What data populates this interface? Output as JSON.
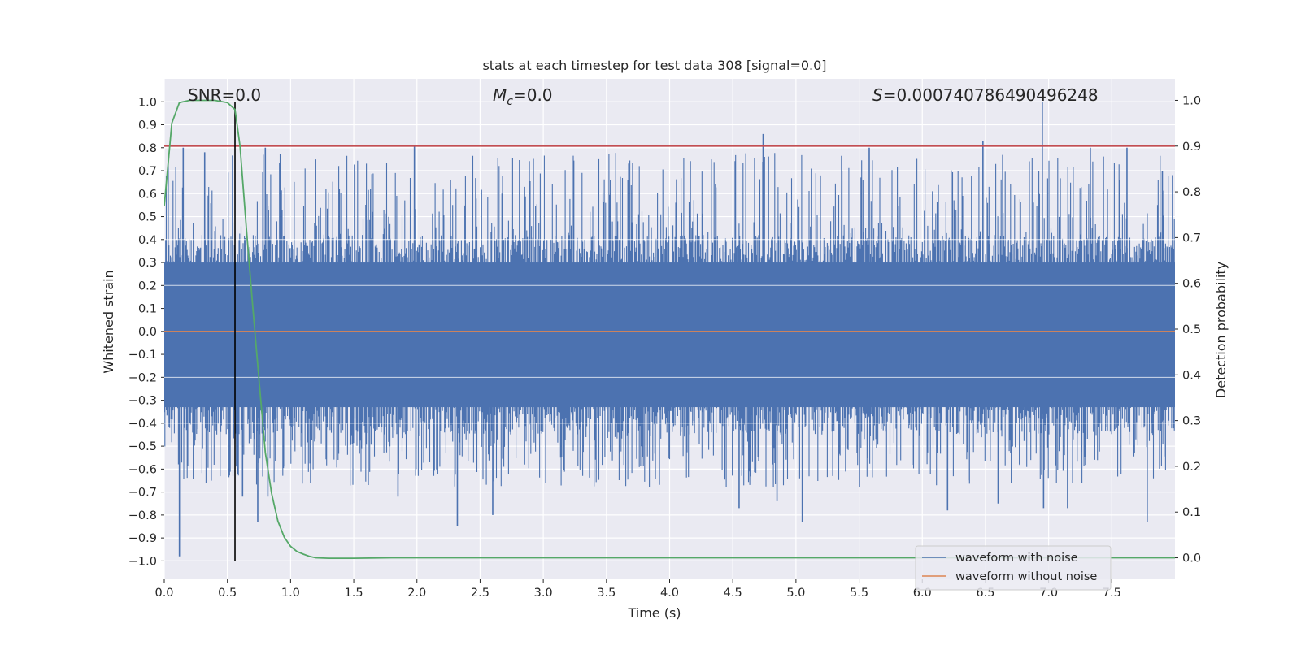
{
  "chart_data": {
    "type": "line",
    "title": "stats at each timestep for test data 308 [signal=0.0]",
    "xlabel": "Time (s)",
    "ylabel": "Whitened strain",
    "y2label": "Detection probability",
    "xlim": [
      0.0,
      8.0
    ],
    "ylim": [
      -1.08,
      1.1
    ],
    "y2lim": [
      -0.047,
      1.047
    ],
    "xticks": [
      0.0,
      0.5,
      1.0,
      1.5,
      2.0,
      2.5,
      3.0,
      3.5,
      4.0,
      4.5,
      5.0,
      5.5,
      6.0,
      6.5,
      7.0,
      7.5
    ],
    "xtick_labels": [
      "0.0",
      "0.5",
      "1.0",
      "1.5",
      "2.0",
      "2.5",
      "3.0",
      "3.5",
      "4.0",
      "4.5",
      "5.0",
      "5.5",
      "6.0",
      "6.5",
      "7.0",
      "7.5"
    ],
    "yticks": [
      1.0,
      0.9,
      0.8,
      0.7,
      0.6,
      0.5,
      0.4,
      0.3,
      0.2,
      0.1,
      0.0,
      -0.1,
      -0.2,
      -0.3,
      -0.4,
      -0.5,
      -0.6,
      -0.7,
      -0.8,
      -0.9,
      -1.0
    ],
    "ytick_labels": [
      "1.0",
      "0.9",
      "0.8",
      "0.7",
      "0.6",
      "0.5",
      "0.4",
      "0.3",
      "0.2",
      "0.1",
      "0.0",
      "−0.1",
      "−0.2",
      "−0.3",
      "−0.4",
      "−0.5",
      "−0.6",
      "−0.7",
      "−0.8",
      "−0.9",
      "−1.0"
    ],
    "y2ticks": [
      1.0,
      0.9,
      0.8,
      0.7,
      0.6,
      0.5,
      0.4,
      0.3,
      0.2,
      0.1,
      0.0
    ],
    "y2tick_labels": [
      "1.0",
      "0.9",
      "0.8",
      "0.7",
      "0.6",
      "0.5",
      "0.4",
      "0.3",
      "0.2",
      "0.1",
      "0.0"
    ],
    "annotations": {
      "snr": "SNR=0.0",
      "mc_symbol": "M",
      "mc_subscript": "c",
      "mc_value": "=0.0",
      "s_symbol": "S",
      "s_value": "=0.000740786490496248"
    },
    "threshold_line": {
      "y2": 0.9,
      "color": "#c44e52"
    },
    "marker_line": {
      "x": 0.56,
      "y_from": -1.0,
      "y_to": 1.0,
      "color": "#000000"
    },
    "noise_envelope": {
      "x": [
        0.0,
        0.1,
        0.2,
        0.3,
        0.4,
        0.5,
        0.6,
        0.7,
        0.8,
        0.9,
        1.0,
        1.5,
        2.0,
        2.5,
        3.0,
        3.5,
        4.0,
        4.5,
        5.0,
        5.5,
        6.0,
        6.5,
        7.0,
        7.5,
        8.0
      ],
      "upper_typical": 0.42,
      "lower_typical": -0.45
    },
    "noise_spikes": [
      {
        "x": 0.12,
        "y": -0.98
      },
      {
        "x": 0.15,
        "y": 0.8
      },
      {
        "x": 0.32,
        "y": 0.78
      },
      {
        "x": 0.62,
        "y": -0.72
      },
      {
        "x": 0.74,
        "y": -0.83
      },
      {
        "x": 0.8,
        "y": 0.8
      },
      {
        "x": 0.82,
        "y": -0.72
      },
      {
        "x": 1.85,
        "y": -0.72
      },
      {
        "x": 1.98,
        "y": 0.81
      },
      {
        "x": 2.32,
        "y": -0.85
      },
      {
        "x": 2.6,
        "y": -0.8
      },
      {
        "x": 4.55,
        "y": -0.77
      },
      {
        "x": 4.74,
        "y": 0.86
      },
      {
        "x": 4.85,
        "y": -0.74
      },
      {
        "x": 5.05,
        "y": -0.83
      },
      {
        "x": 5.58,
        "y": 0.8
      },
      {
        "x": 6.2,
        "y": -0.78
      },
      {
        "x": 6.48,
        "y": 0.83
      },
      {
        "x": 6.6,
        "y": -0.75
      },
      {
        "x": 6.95,
        "y": 1.0
      },
      {
        "x": 6.96,
        "y": -0.77
      },
      {
        "x": 7.15,
        "y": -0.77
      },
      {
        "x": 7.33,
        "y": 0.8
      },
      {
        "x": 7.62,
        "y": 0.8
      },
      {
        "x": 7.78,
        "y": -0.83
      },
      {
        "x": 7.9,
        "y": 0.7
      }
    ],
    "series": [
      {
        "name": "waveform with noise",
        "color": "#4c72b0"
      },
      {
        "name": "waveform without noise",
        "color": "#dd8452",
        "y": 0.0
      },
      {
        "name": "detection probability",
        "color": "#55a868",
        "axis": "right",
        "x": [
          0.0,
          0.03,
          0.06,
          0.12,
          0.2,
          0.3,
          0.4,
          0.5,
          0.56,
          0.6,
          0.65,
          0.7,
          0.75,
          0.8,
          0.85,
          0.9,
          0.95,
          1.0,
          1.05,
          1.1,
          1.15,
          1.2,
          1.3,
          1.5,
          1.8,
          2.5,
          8.0
        ],
        "y": [
          0.77,
          0.86,
          0.95,
          0.995,
          1.0,
          1.0,
          1.0,
          0.995,
          0.98,
          0.9,
          0.72,
          0.55,
          0.39,
          0.23,
          0.14,
          0.08,
          0.045,
          0.025,
          0.014,
          0.008,
          0.003,
          0.0,
          -0.001,
          -0.001,
          0.0,
          0.0,
          0.0
        ]
      }
    ],
    "legend": {
      "location": "lower-right",
      "entries": [
        "waveform with noise",
        "waveform without noise"
      ]
    }
  }
}
